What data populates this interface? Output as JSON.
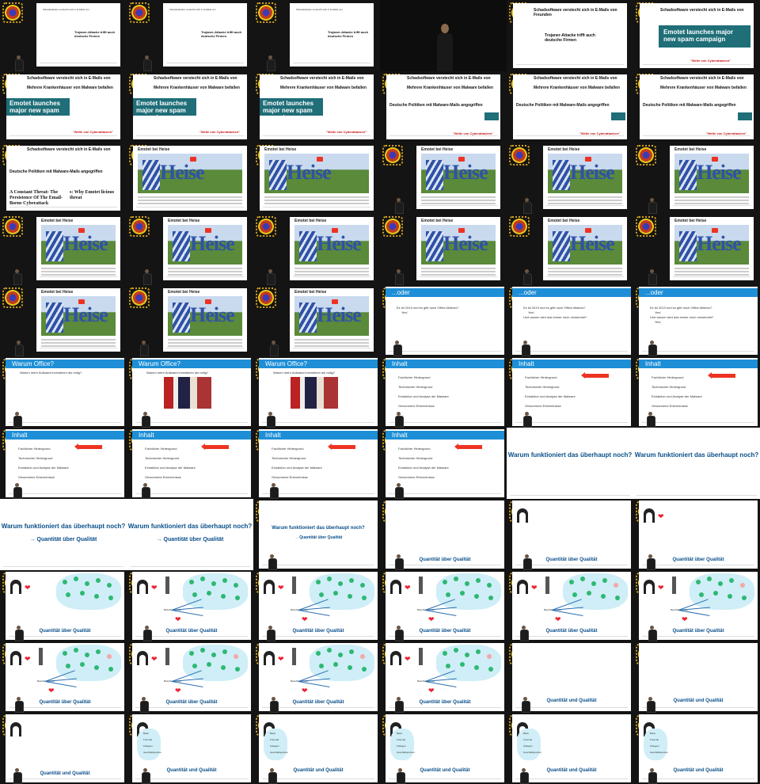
{
  "video_thumbnails": {
    "article": {
      "h_schad": "Schadsoftware verstecht sich in E-Mails von",
      "h_schad2": "Freunden",
      "h_kranken": "Mehrere Krankenhäuser von Malware befallen",
      "h_politik": "Deutsche Politiken mit Malware-Mails angegriffen",
      "h_trojaner": "Trojaner-Attacke trifft auch deutsche Firmen",
      "h_trojaner_small": "Trojaner-Attacke trifft auch deutsche Firmen",
      "emotet_spam": "Emotet launches major new spam campaign",
      "cyberattacke": "\"Welle von Cyberattacken\"",
      "constant_threat": "A Constant Threat: The Persistence Of The Email-Borne Cyberattack",
      "emotet_delicious": "s: Why Emotet licious threat"
    },
    "heise_title": "Emotet bei Heise",
    "heise_word": "Heise",
    "oder": {
      "title": "...oder",
      "q1": "Es ist 2019 und es gibt noch Office-Makros?",
      "a1": "Yes!",
      "q2": "Und warum wird das immer noch verwendet?",
      "a2": "Yes!"
    },
    "warum_office": {
      "title": "Warum Office?",
      "q": "Warum mehr Aufwand investieren als nötig?"
    },
    "inhalt": {
      "title": "Inhalt",
      "items": [
        "Fachlicher Hintergrund",
        "Technischer Hintergrund",
        "Extraktion und Analyse der Malware",
        "Gewonnene Erkenntnisse"
      ]
    },
    "funktioniert": "Warum funktioniert das überhaupt noch?",
    "quantitaet_arrow": "→ Quantität über Qualität",
    "quantitaet": "Quantität über Qualität",
    "quantitaet_qualitaet": "Quantität und Qualität",
    "small_label": "Betreffende Mail",
    "cloud_items": [
      "Bank",
      "Freunde",
      "Kollegen",
      "Geschäftspartner"
    ]
  }
}
